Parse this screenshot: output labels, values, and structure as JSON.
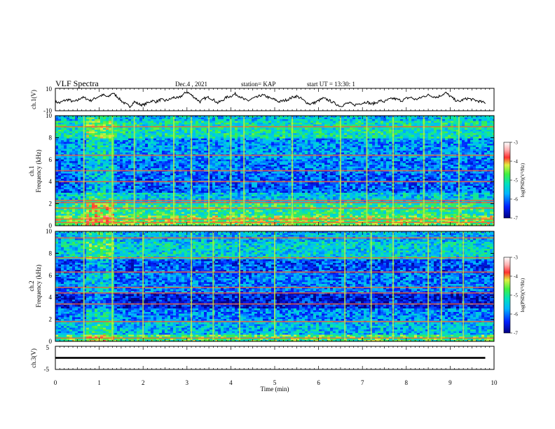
{
  "header": {
    "title": "VLF Spectra",
    "date": "Dec.4 , 2021",
    "station": "station= KAP",
    "start": "start UT = 13:30: 1"
  },
  "chart_data": [
    {
      "type": "line",
      "name": "ch1-waveform",
      "ylabel": "ch.1(V)",
      "ylim": [
        -10,
        10
      ],
      "yticks": [
        "10",
        "-10"
      ],
      "xlim": [
        0,
        10
      ],
      "x": [
        0,
        0.1,
        0.2,
        0.3,
        0.4,
        0.5,
        0.6,
        0.7,
        0.8,
        0.9,
        1.0,
        1.1,
        1.2,
        1.3,
        1.4,
        1.5,
        1.6,
        1.7,
        1.8,
        1.9,
        2.0,
        2.1,
        2.2,
        2.3,
        2.4,
        2.5,
        2.6,
        2.7,
        2.8,
        2.9,
        3.0,
        3.1,
        3.2,
        3.3,
        3.4,
        3.5,
        3.6,
        3.7,
        3.8,
        3.9,
        4.0,
        4.1,
        4.2,
        4.3,
        4.4,
        4.5,
        4.6,
        4.7,
        4.8,
        4.9,
        5.0,
        5.1,
        5.2,
        5.3,
        5.4,
        5.5,
        5.6,
        5.7,
        5.8,
        5.9,
        6.0,
        6.1,
        6.2,
        6.3,
        6.4,
        6.5,
        6.6,
        6.7,
        6.8,
        6.9,
        7.0,
        7.1,
        7.2,
        7.3,
        7.4,
        7.5,
        7.6,
        7.7,
        7.8,
        7.9,
        8.0,
        8.1,
        8.2,
        8.3,
        8.4,
        8.5,
        8.6,
        8.7,
        8.8,
        8.9,
        9.0,
        9.1,
        9.2,
        9.3,
        9.4,
        9.5,
        9.6,
        9.7,
        9.8
      ],
      "values": [
        -2,
        -3,
        -1,
        0,
        -2,
        -1,
        2,
        1,
        -1,
        1,
        3,
        4,
        2,
        6,
        3,
        -1,
        -4,
        -6,
        -2,
        -4,
        -5,
        -3,
        -1,
        -2,
        0,
        -1,
        0,
        2,
        1,
        4,
        7,
        4,
        1,
        -2,
        1,
        2,
        0,
        -3,
        -1,
        2,
        3,
        5,
        3,
        0,
        -1,
        1,
        2,
        4,
        3,
        1,
        0,
        -2,
        -1,
        0,
        2,
        3,
        1,
        -2,
        -4,
        -3,
        -1,
        1,
        0,
        -2,
        -4,
        -6,
        -4,
        -3,
        -5,
        -4,
        -3,
        -2,
        -4,
        -3,
        -1,
        -2,
        0,
        1,
        0,
        -1,
        1,
        2,
        0,
        1,
        3,
        4,
        3,
        2,
        4,
        6,
        3,
        0,
        -2,
        0,
        1,
        0,
        -1,
        -2,
        -3
      ]
    },
    {
      "type": "heatmap",
      "name": "ch1-spectrogram",
      "ylabel": "ch.1",
      "ylabel2": "Frequency (kHz)",
      "ylim": [
        0,
        10
      ],
      "yticks": [
        "0",
        "2",
        "4",
        "6",
        "8",
        "10"
      ],
      "xlim": [
        0,
        10
      ],
      "colorbar": {
        "label": "log(PSD)(V²/Hz)",
        "range": [
          -7,
          -3
        ],
        "ticks": [
          "-3",
          "-4",
          "-5",
          "-6",
          "-7"
        ]
      },
      "bands_khz": [
        [
          9.5,
          10,
          -5.5
        ],
        [
          8.0,
          9.5,
          -5.2
        ],
        [
          6.0,
          8.0,
          -5.8
        ],
        [
          4.8,
          6.0,
          -6.0
        ],
        [
          3.0,
          4.8,
          -6.1
        ],
        [
          2.0,
          3.0,
          -5.5
        ],
        [
          1.0,
          2.0,
          -5.0
        ],
        [
          0,
          1.0,
          -4.6
        ]
      ],
      "lines_khz": [
        0.3,
        0.6,
        1.6,
        2.1,
        2.3,
        4.0,
        5.0,
        6.4,
        9.0
      ],
      "events_min": [
        0.65,
        1.3,
        1.8,
        2.7,
        3.1,
        3.5,
        4.0,
        4.3,
        5.4,
        6.5,
        7.1,
        7.7,
        8.4,
        8.8,
        9.2
      ],
      "enhanced_interval_min": [
        0.65,
        1.3
      ]
    },
    {
      "type": "heatmap",
      "name": "ch2-spectrogram",
      "ylabel": "ch.2",
      "ylabel2": "Frequency (kHz)",
      "ylim": [
        0,
        10
      ],
      "yticks": [
        "0",
        "2",
        "4",
        "6",
        "8",
        "10"
      ],
      "xlim": [
        0,
        10
      ],
      "colorbar": {
        "label": "log(PSD)(V²/Hz)",
        "range": [
          -7,
          -3
        ],
        "ticks": [
          "-3",
          "-4",
          "-5",
          "-6",
          "-7"
        ]
      },
      "bands_khz": [
        [
          9.0,
          10,
          -5.6
        ],
        [
          7.5,
          9.0,
          -5.4
        ],
        [
          6.2,
          7.5,
          -6.2
        ],
        [
          4.4,
          6.2,
          -6.0
        ],
        [
          3.0,
          4.4,
          -6.5
        ],
        [
          1.8,
          3.0,
          -5.9
        ],
        [
          0.6,
          1.8,
          -5.6
        ],
        [
          0,
          0.6,
          -4.8
        ]
      ],
      "lines_khz": [
        0.3,
        1.8,
        3.4,
        4.4,
        4.9,
        6.3,
        7.6,
        9.4
      ],
      "events_min": [
        0.65,
        1.3,
        2.0,
        3.1,
        3.6,
        4.2,
        5.0,
        6.6,
        7.2,
        7.7,
        8.5,
        8.8,
        9.3
      ],
      "enhanced_interval_min": [
        0.65,
        1.3
      ]
    },
    {
      "type": "line",
      "name": "ch3-waveform",
      "ylabel": "ch.3(V)",
      "xlabel": "Time (min)",
      "ylim": [
        -5,
        5
      ],
      "yticks": [
        "5",
        "-5"
      ],
      "xlim": [
        0,
        10
      ],
      "xticks": [
        "0",
        "1",
        "2",
        "3",
        "4",
        "5",
        "6",
        "7",
        "8",
        "9",
        "10"
      ],
      "x": [
        0,
        9.8
      ],
      "values": [
        0,
        0
      ],
      "trace_amplitude": 0.4
    }
  ]
}
